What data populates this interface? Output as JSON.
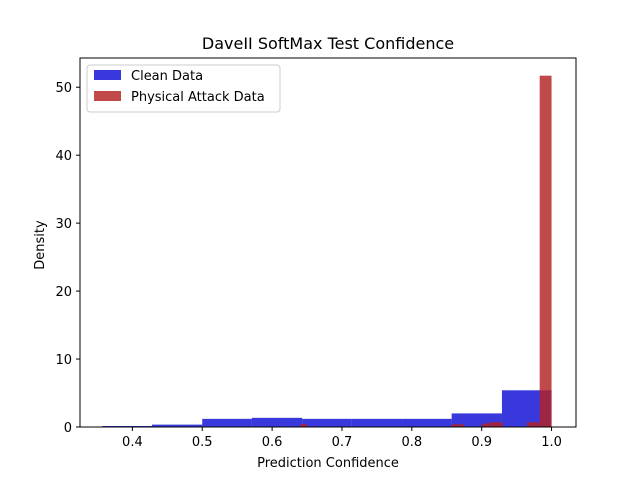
{
  "chart_data": {
    "type": "bar",
    "title": "DaveII SoftMax Test Confidence",
    "xlabel": "Prediction Confidence",
    "ylabel": "Density",
    "xlim": [
      0.325,
      1.035
    ],
    "ylim": [
      0,
      54.3
    ],
    "x_ticks": [
      0.4,
      0.5,
      0.6,
      0.7,
      0.8,
      0.9,
      1.0
    ],
    "x_tick_labels": [
      "0.4",
      "0.5",
      "0.6",
      "0.7",
      "0.8",
      "0.9",
      "1.0"
    ],
    "y_ticks": [
      0,
      10,
      20,
      30,
      40,
      50
    ],
    "y_tick_labels": [
      "0",
      "10",
      "20",
      "30",
      "40",
      "50"
    ],
    "grid": false,
    "legend_position": "top-left",
    "series": [
      {
        "name": "Clean Data",
        "color": "#0000d4",
        "opacity": 0.78,
        "bins": [
          {
            "x0": 0.357,
            "x1": 0.428,
            "value": 0.15
          },
          {
            "x0": 0.428,
            "x1": 0.5,
            "value": 0.35
          },
          {
            "x0": 0.5,
            "x1": 0.571,
            "value": 1.2
          },
          {
            "x0": 0.571,
            "x1": 0.643,
            "value": 1.35
          },
          {
            "x0": 0.643,
            "x1": 0.714,
            "value": 1.2
          },
          {
            "x0": 0.714,
            "x1": 0.786,
            "value": 1.2
          },
          {
            "x0": 0.786,
            "x1": 0.857,
            "value": 1.2
          },
          {
            "x0": 0.857,
            "x1": 0.929,
            "value": 2.0
          },
          {
            "x0": 0.929,
            "x1": 1.0,
            "value": 5.4
          }
        ]
      },
      {
        "name": "Physical Attack Data",
        "color": "#b22222",
        "opacity": 0.82,
        "bins": [
          {
            "x0": 0.64,
            "x1": 0.65,
            "value": 0.4
          },
          {
            "x0": 0.857,
            "x1": 0.875,
            "value": 0.4
          },
          {
            "x0": 0.9,
            "x1": 0.91,
            "value": 0.5
          },
          {
            "x0": 0.91,
            "x1": 0.93,
            "value": 0.7
          },
          {
            "x0": 0.965,
            "x1": 0.983,
            "value": 0.7
          },
          {
            "x0": 0.983,
            "x1": 1.0,
            "value": 51.7
          }
        ]
      }
    ]
  }
}
